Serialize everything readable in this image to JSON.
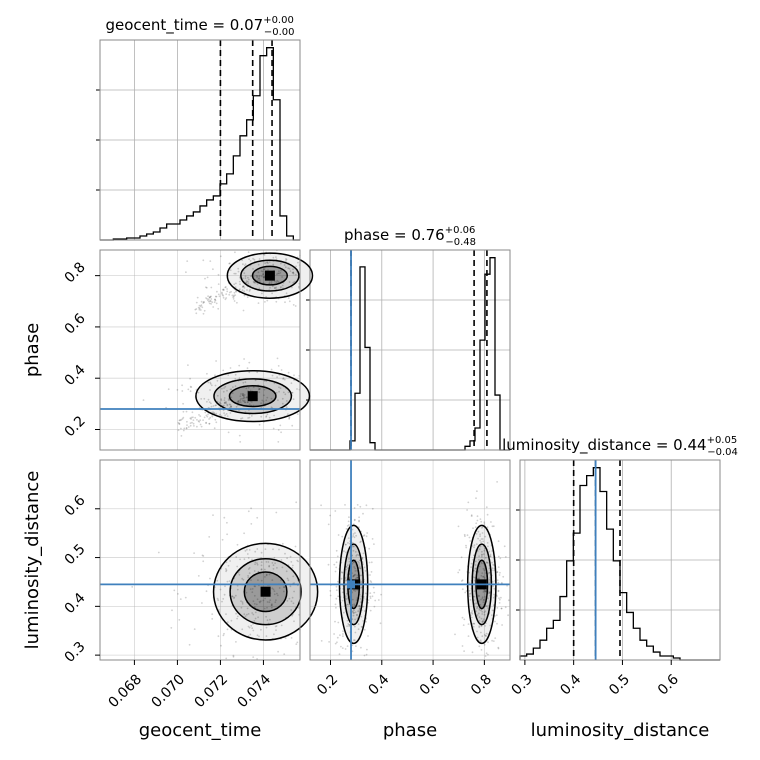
{
  "chart_data": {
    "type": "corner",
    "parameters": [
      "geocent_time",
      "phase",
      "luminosity_distance"
    ],
    "axis_labels": [
      "geocent_time",
      "phase",
      "luminosity_distance"
    ],
    "titles": [
      {
        "text": "geocent_time = 0.07",
        "sup": "+0.00",
        "sub": "−0.00"
      },
      {
        "text": "phase = 0.76",
        "sup": "+0.06",
        "sub": "−0.48"
      },
      {
        "text": "luminosity_distance = 0.44",
        "sup": "+0.05",
        "sub": "−0.04"
      }
    ],
    "ranges": [
      [
        0.0664,
        0.0757
      ],
      [
        0.12,
        0.9
      ],
      [
        0.29,
        0.7
      ]
    ],
    "ticks": [
      [
        0.068,
        0.07,
        0.072,
        0.074
      ],
      [
        0.2,
        0.4,
        0.6,
        0.8
      ],
      [
        0.3,
        0.4,
        0.5,
        0.6
      ]
    ],
    "tick_labels": [
      [
        "0.068",
        "0.070",
        "0.072",
        "0.074"
      ],
      [
        "0.2",
        "0.4",
        "0.6",
        "0.8"
      ],
      [
        "0.3",
        "0.4",
        "0.5",
        "0.6"
      ]
    ],
    "quantiles": [
      [
        0.072,
        0.0735,
        0.0744
      ],
      [
        0.28,
        0.76,
        0.81
      ],
      [
        0.4,
        0.445,
        0.495
      ]
    ],
    "truths": [
      null,
      0.28,
      0.445
    ],
    "marginals": [
      {
        "bins": [
          0.0664,
          0.0757
        ],
        "counts": [
          0.0,
          0.0,
          0.005,
          0.005,
          0.01,
          0.01,
          0.02,
          0.03,
          0.04,
          0.06,
          0.08,
          0.08,
          0.1,
          0.12,
          0.14,
          0.17,
          0.2,
          0.22,
          0.28,
          0.33,
          0.42,
          0.52,
          0.6,
          0.72,
          0.92,
          0.96,
          0.7,
          0.12,
          0.02,
          0.0
        ]
      },
      {
        "bins": [
          0.12,
          0.9
        ],
        "counts": [
          0.0,
          0.0,
          0.0,
          0.0,
          0.0,
          0.0,
          0.0,
          0.0,
          0.05,
          0.31,
          1.0,
          0.56,
          0.04,
          0.0,
          0.0,
          0.0,
          0.0,
          0.0,
          0.0,
          0.0,
          0.0,
          0.0,
          0.0,
          0.0,
          0.0,
          0.0,
          0.0,
          0.0,
          0.0,
          0.0,
          0.0,
          0.02,
          0.05,
          0.12,
          0.6,
          0.96,
          1.05,
          0.3,
          0.0,
          0.0
        ]
      },
      {
        "bins": [
          0.29,
          0.7
        ],
        "counts": [
          0.02,
          0.03,
          0.06,
          0.1,
          0.16,
          0.2,
          0.32,
          0.5,
          0.64,
          0.88,
          0.93,
          0.97,
          0.85,
          0.66,
          0.5,
          0.34,
          0.24,
          0.16,
          0.1,
          0.07,
          0.04,
          0.02,
          0.02,
          0.01,
          0.0,
          0.0,
          0.0,
          0.0,
          0.0,
          0.0
        ]
      }
    ],
    "pairs": {
      "phase_vs_geocent_time": {
        "modes": [
          {
            "x": 0.0743,
            "y": 0.8,
            "sx": 0.0009,
            "sy": 0.04
          },
          {
            "x": 0.0735,
            "y": 0.33,
            "sx": 0.0012,
            "sy": 0.045
          }
        ]
      },
      "luminosity_distance_vs_geocent_time": {
        "modes": [
          {
            "x": 0.0741,
            "y": 0.43,
            "sx": 0.0011,
            "sy": 0.045
          }
        ]
      },
      "luminosity_distance_vs_phase": {
        "modes": [
          {
            "x": 0.29,
            "y": 0.445,
            "sx": 0.025,
            "sy": 0.055
          },
          {
            "x": 0.79,
            "y": 0.445,
            "sx": 0.025,
            "sy": 0.055
          }
        ]
      }
    },
    "colors": {
      "truth": "#3f80bd",
      "contour": "#000000",
      "frame": "#8a8a8a",
      "grid": "#b0b0b0"
    }
  }
}
